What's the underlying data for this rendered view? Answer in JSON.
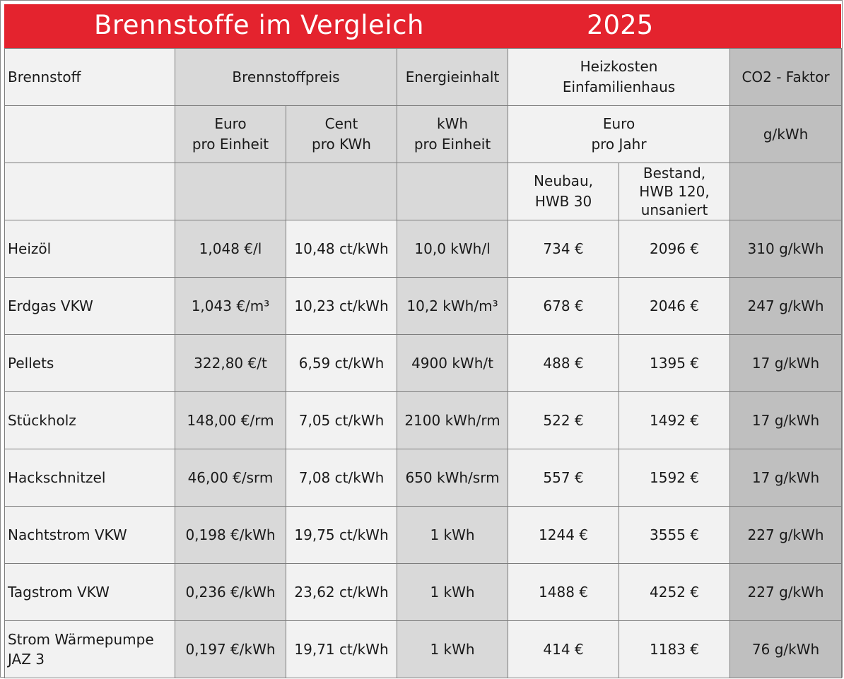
{
  "title": {
    "heading": "Brennstoffe im Vergleich",
    "year": "2025"
  },
  "header_row1": {
    "fuel": "Brennstoff",
    "price": "Brennstoffpreis",
    "energy": "Energieinhalt",
    "heating_cost": "Heizkosten\nEinfamilienhaus",
    "co2": "CO2 - Faktor"
  },
  "header_row2": {
    "euro_unit": "Euro\npro Einheit",
    "cent_kwh": "Cent\npro KWh",
    "kwh_unit": "kWh\npro Einheit",
    "euro_year": "Euro\npro Jahr",
    "g_kwh": "g/kWh"
  },
  "header_row3": {
    "new_build": "Neubau,\nHWB 30",
    "existing": "Bestand,\nHWB 120,\nunsaniert"
  },
  "rows": [
    {
      "fuel": "Heizöl",
      "price_unit": "1,048 €/l",
      "price_kwh": "10,48 ct/kWh",
      "energy": "10,0 kWh/l",
      "cost_new": "734 €",
      "cost_old": "2096 €",
      "co2": "310 g/kWh"
    },
    {
      "fuel": "Erdgas VKW",
      "price_unit": "1,043 €/m³",
      "price_kwh": "10,23 ct/kWh",
      "energy": "10,2 kWh/m³",
      "cost_new": "678 €",
      "cost_old": "2046 €",
      "co2": "247 g/kWh"
    },
    {
      "fuel": "Pellets",
      "price_unit": "322,80 €/t",
      "price_kwh": "6,59 ct/kWh",
      "energy": "4900 kWh/t",
      "cost_new": "488 €",
      "cost_old": "1395 €",
      "co2": "17 g/kWh"
    },
    {
      "fuel": "Stückholz",
      "price_unit": "148,00 €/rm",
      "price_kwh": "7,05 ct/kWh",
      "energy": "2100 kWh/rm",
      "cost_new": "522 €",
      "cost_old": "1492 €",
      "co2": "17 g/kWh"
    },
    {
      "fuel": "Hackschnitzel",
      "price_unit": "46,00 €/srm",
      "price_kwh": "7,08 ct/kWh",
      "energy": "650 kWh/srm",
      "cost_new": "557 €",
      "cost_old": "1592 €",
      "co2": "17 g/kWh"
    },
    {
      "fuel": "Nachtstrom VKW",
      "price_unit": "0,198 €/kWh",
      "price_kwh": "19,75 ct/kWh",
      "energy": "1 kWh",
      "cost_new": "1244 €",
      "cost_old": "3555 €",
      "co2": "227 g/kWh"
    },
    {
      "fuel": "Tagstrom VKW",
      "price_unit": "0,236 €/kWh",
      "price_kwh": "23,62 ct/kWh",
      "energy": "1 kWh",
      "cost_new": "1488 €",
      "cost_old": "4252 €",
      "co2": "227 g/kWh"
    },
    {
      "fuel": "Strom Wärmepumpe\nJAZ 3",
      "price_unit": "0,197 €/kWh",
      "price_kwh": "19,71 ct/kWh",
      "energy": "1 kWh",
      "cost_new": "414 €",
      "cost_old": "1183 €",
      "co2": "76 g/kWh"
    }
  ],
  "colors": {
    "title_red": "#e4232e",
    "light_cell": "#f2f2f2",
    "mid_cell": "#d9d9d9",
    "dark_cell": "#bfbfbf",
    "border": "#7d7d7d"
  }
}
